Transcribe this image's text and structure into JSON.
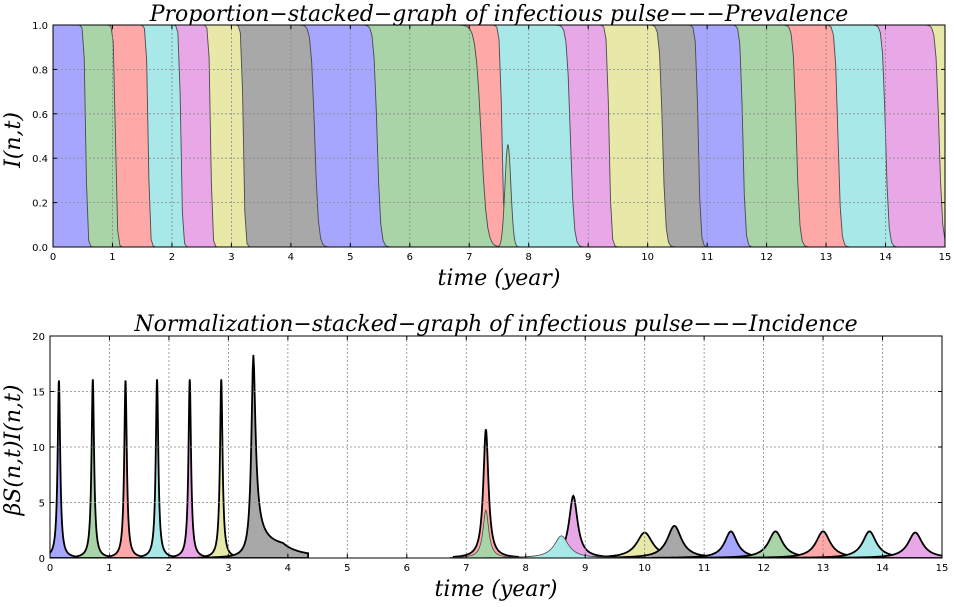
{
  "colors": {
    "palette": [
      "#a6a6ff",
      "#a8d4a8",
      "#ffa8a8",
      "#a8e8e8",
      "#e8a8e8",
      "#e8e8a8",
      "#a8a8a8"
    ],
    "stroke": "#4a4a4a",
    "grid": "#888888"
  },
  "chart_data": [
    {
      "type": "area",
      "stacked": true,
      "title": "Proportion−stacked−graph of infectious pulse−−−Prevalence",
      "xlabel": "time (year)",
      "ylabel": "I(n,t)",
      "xlim": [
        0,
        15
      ],
      "ylim": [
        0,
        1
      ],
      "xticks": [
        "0",
        "1",
        "2",
        "3",
        "4",
        "5",
        "6",
        "7",
        "8",
        "9",
        "10",
        "11",
        "12",
        "13",
        "14",
        "15"
      ],
      "yticks": [
        "0.0",
        "0.2",
        "0.4",
        "0.6",
        "0.8",
        "1.0"
      ],
      "grid": true,
      "boundaries": [
        {
          "start": 0.0,
          "end": 0.55,
          "color": 0
        },
        {
          "start": 0.45,
          "end": 1.05,
          "color": 1
        },
        {
          "start": 1.0,
          "end": 1.6,
          "color": 2
        },
        {
          "start": 1.55,
          "end": 2.15,
          "color": 3
        },
        {
          "start": 2.1,
          "end": 2.65,
          "color": 4
        },
        {
          "start": 2.6,
          "end": 3.2,
          "color": 5
        },
        {
          "start": 3.15,
          "end": 4.4,
          "color": 6
        },
        {
          "start": 4.3,
          "end": 5.45,
          "color": 0
        },
        {
          "start": 5.3,
          "end": 7.2,
          "color": 1
        },
        {
          "start": 6.8,
          "end": 7.55,
          "color": 2
        },
        {
          "start": 7.5,
          "end": 8.7,
          "color": 3
        },
        {
          "start": 8.6,
          "end": 9.35,
          "color": 4
        },
        {
          "start": 9.2,
          "end": 10.25,
          "color": 5
        },
        {
          "start": 10.05,
          "end": 10.85,
          "color": 6
        },
        {
          "start": 10.75,
          "end": 11.6,
          "color": 0
        },
        {
          "start": 11.4,
          "end": 12.5,
          "color": 1
        },
        {
          "start": 12.2,
          "end": 13.2,
          "color": 2
        },
        {
          "start": 12.95,
          "end": 14.0,
          "color": 3
        },
        {
          "start": 13.75,
          "end": 14.9,
          "color": 4
        },
        {
          "start": 14.55,
          "end": 15.5,
          "color": 5
        }
      ],
      "peak_annotation": {
        "x": 7.65,
        "y": 0.46
      }
    },
    {
      "type": "area",
      "stacked": true,
      "title": "Normalization−stacked−graph of infectious pulse−−−Incidence",
      "xlabel": "time (year)",
      "ylabel": "βS(n,t)I(n,t)",
      "xlim": [
        0,
        15
      ],
      "ylim": [
        0,
        20
      ],
      "xticks": [
        "0",
        "1",
        "2",
        "3",
        "4",
        "5",
        "6",
        "7",
        "8",
        "9",
        "10",
        "11",
        "12",
        "13",
        "14",
        "15"
      ],
      "yticks": [
        "0",
        "5",
        "10",
        "15",
        "20"
      ],
      "grid": true,
      "peaks": [
        {
          "x": 0.15,
          "height": 16.0,
          "width": 0.045,
          "color": 0
        },
        {
          "x": 0.72,
          "height": 16.1,
          "width": 0.045,
          "color": 1
        },
        {
          "x": 1.27,
          "height": 16.0,
          "width": 0.045,
          "color": 2
        },
        {
          "x": 1.8,
          "height": 16.1,
          "width": 0.045,
          "color": 3
        },
        {
          "x": 2.35,
          "height": 16.1,
          "width": 0.045,
          "color": 4
        },
        {
          "x": 2.88,
          "height": 16.1,
          "width": 0.045,
          "color": 5
        },
        {
          "x": 3.42,
          "height": 18.3,
          "width": 0.07,
          "color": 6,
          "tail": 0.5
        },
        {
          "x": 7.33,
          "height": 11.6,
          "width": 0.09,
          "color": 2
        },
        {
          "x": 8.8,
          "height": 5.6,
          "width": 0.15,
          "color": 4
        },
        {
          "x": 10.0,
          "height": 2.3,
          "width": 0.28,
          "color": 5
        },
        {
          "x": 10.5,
          "height": 2.9,
          "width": 0.25,
          "color": 6
        },
        {
          "x": 11.45,
          "height": 2.4,
          "width": 0.22,
          "color": 0
        },
        {
          "x": 12.2,
          "height": 2.4,
          "width": 0.25,
          "color": 1
        },
        {
          "x": 13.0,
          "height": 2.4,
          "width": 0.25,
          "color": 2
        },
        {
          "x": 13.78,
          "height": 2.4,
          "width": 0.24,
          "color": 3
        },
        {
          "x": 14.55,
          "height": 2.3,
          "width": 0.25,
          "color": 4
        }
      ],
      "sub_peaks": [
        {
          "x": 7.33,
          "height": 4.3,
          "width": 0.1,
          "color": 1
        },
        {
          "x": 8.6,
          "height": 2.0,
          "width": 0.25,
          "color": 3
        }
      ]
    }
  ]
}
